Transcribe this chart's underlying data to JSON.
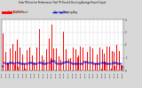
{
  "title": "Solar PV/Inverter Performance Total PV Panel & Running Average Power Output",
  "bg_color": "#d8d8d8",
  "plot_bg": "#ffffff",
  "grid_color": "#aaaaaa",
  "bar_color": "#ff0000",
  "avg_color": "#0000cc",
  "n_points": 500,
  "seed": 7,
  "ylim_max": 1.0,
  "legend_bar": "Total PV Panel",
  "legend_avg": "Running Avg"
}
